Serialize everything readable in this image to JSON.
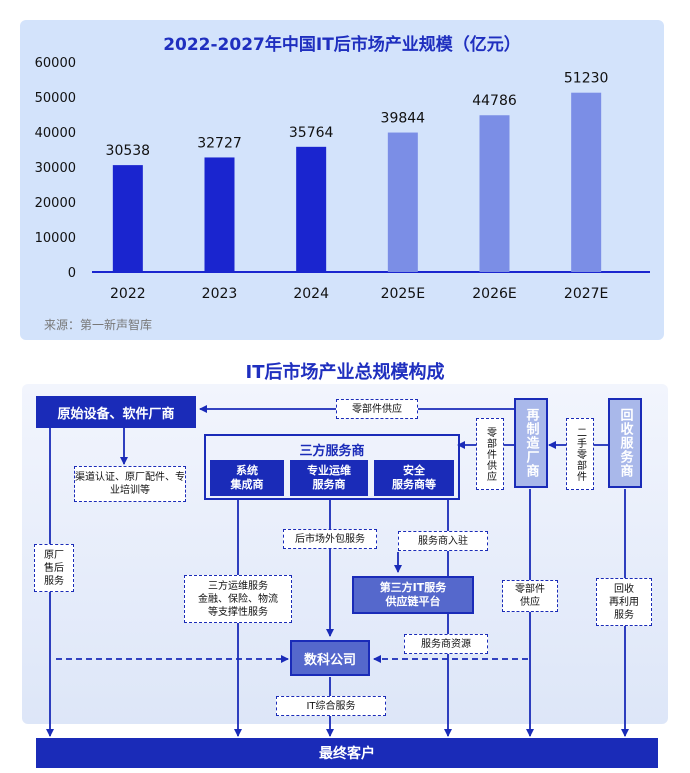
{
  "chart_data": {
    "type": "bar",
    "title": "2022-2027年中国IT后市场产业规模（亿元）",
    "categories": [
      "2022",
      "2023",
      "2024",
      "2025E",
      "2026E",
      "2027E"
    ],
    "values": [
      30538,
      32727,
      35764,
      39844,
      44786,
      51230
    ],
    "value_labels": [
      "30538",
      "32727",
      "35764",
      "39844",
      "44786",
      "51230"
    ],
    "forecast_from_index": 3,
    "ylim": [
      0,
      60000
    ],
    "yticks": [
      0,
      10000,
      20000,
      30000,
      40000,
      50000,
      60000
    ],
    "ytick_labels": [
      "0",
      "10000",
      "20000",
      "30000",
      "40000",
      "50000",
      "60000"
    ],
    "grid": false,
    "colors": {
      "actual": "#1a25cf",
      "forecast": "#7b8ee6",
      "axis": "#1a25cf"
    }
  },
  "source": "来源：第一新声智库",
  "diagram": {
    "title": "IT后市场产业总规模构成",
    "oem": "原始设备、软件厂商",
    "third_party": "三方服务商",
    "sub1": "系统\n集成商",
    "sub2": "专业运维\n服务商",
    "sub3": "安全\n服务商等",
    "remanufacturer": "再制造厂商",
    "recycler": "回收服务商",
    "parts_supply_top": "零部件供应",
    "parts_supply_vertical": "零部件供应",
    "second_hand_parts": "二手零部件",
    "channel": "渠道认证、原厂配件、专业培训等",
    "oem_aftersales": "原厂\n售后\n服务",
    "outsourcing": "后市场外包服务",
    "entry": "服务商入驻",
    "support": "三方运维服务\n金融、保险、物流\n等支撑性服务",
    "platform": "第三方IT服务\n供应链平台",
    "resources": "服务商资源",
    "parts_supply_lower": "零部件\n供应",
    "recycle_reuse": "回收\n再利用\n服务",
    "shuke": "数科公司",
    "it_service": "IT综合服务",
    "end_customer": "最终客户"
  }
}
